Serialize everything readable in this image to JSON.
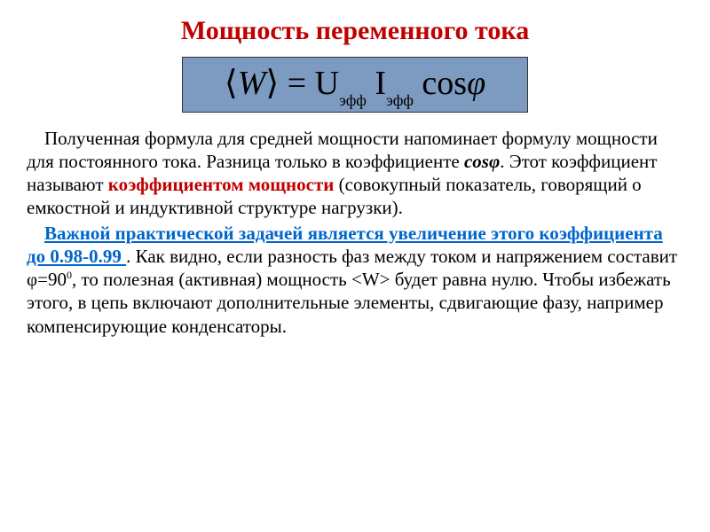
{
  "title": {
    "text": "Мощность переменного тока",
    "color": "#c00000",
    "fontsize": 30
  },
  "formula": {
    "angle_left": "⟨",
    "W": "W",
    "angle_right": "⟩",
    "equals": " = U",
    "sub1": "эфф",
    "I": " I",
    "sub2": "эфф",
    "cos": " cos",
    "phi": "φ",
    "background_color": "#7d9bc1",
    "border_color": "#333333",
    "fontsize": 38
  },
  "body": {
    "p1_a": "Полученная формула для средней мощности напоминает формулу мощности для постоянного тока. Разница только в коэффициенте ",
    "cosphi": "cosφ",
    "p1_b": ". Этот коэффициент называют ",
    "power_coeff": "коэффициентом мощности",
    "p1_c": " (совокупный показатель, говорящий о емкостной и индуктивной структуре нагрузки).",
    "link_text": "Важной практической задачей является увеличение этого коэффициента до 0.98-0.99 ",
    "p2_a": ". Как видно, если разность фаз между током и напряжением составит φ=90",
    "sup0": "0",
    "p2_b": ",  то полезная  (активная) мощность <W> будет равна нулю. Чтобы избежать этого, в цепь включают дополнительные элементы, сдвигающие фазу, например компенсирующие конденсаторы.",
    "text_color": "#000000",
    "link_color": "#0066cc",
    "accent_color": "#c00000",
    "fontsize": 21
  }
}
